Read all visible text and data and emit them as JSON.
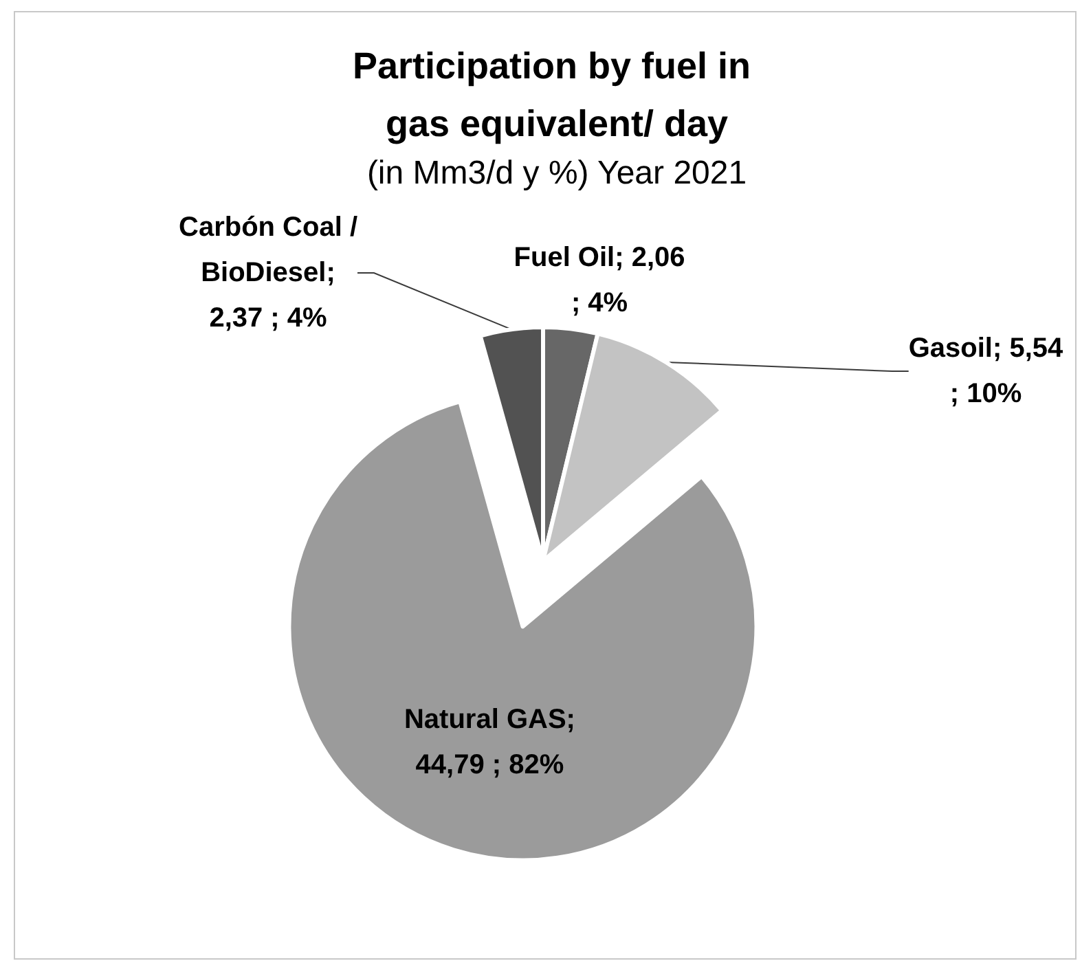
{
  "chart_data": {
    "type": "pie",
    "title": "Participation by fuel in gas equivalent/ day",
    "subtitle": "(in Mm3/d y %) Year 2021",
    "categories": [
      "Fuel Oil",
      "Gasoil",
      "Natural GAS",
      "Carbón Coal / BioDiesel"
    ],
    "values": [
      2.06,
      5.54,
      44.79,
      2.37
    ],
    "colors": [
      "#676767",
      "#c3c3c3",
      "#9b9b9b",
      "#525252"
    ],
    "value_labels": [
      "; 2,06 ; 4%",
      "; 5,54 ; 10%",
      "; 44,79 ; 82%",
      "; 2,37 ; 4%"
    ]
  }
}
